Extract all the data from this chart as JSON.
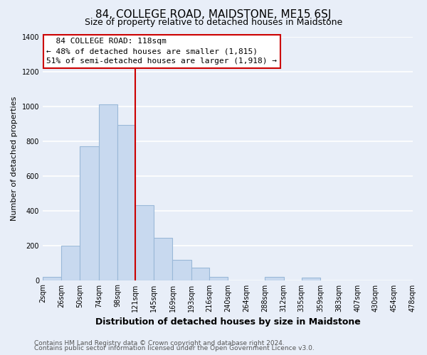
{
  "title": "84, COLLEGE ROAD, MAIDSTONE, ME15 6SJ",
  "subtitle": "Size of property relative to detached houses in Maidstone",
  "xlabel": "Distribution of detached houses by size in Maidstone",
  "ylabel": "Number of detached properties",
  "bar_left_edges": [
    2,
    26,
    50,
    74,
    98,
    121,
    145,
    169,
    193,
    216,
    240,
    264,
    288,
    312,
    335,
    359,
    383,
    407,
    430,
    454
  ],
  "bar_heights": [
    20,
    200,
    770,
    1010,
    890,
    430,
    245,
    115,
    70,
    20,
    0,
    0,
    20,
    0,
    15,
    0,
    0,
    0,
    0,
    0
  ],
  "bar_widths": [
    24,
    24,
    24,
    24,
    23,
    24,
    24,
    24,
    23,
    24,
    24,
    24,
    24,
    23,
    24,
    24,
    24,
    23,
    24,
    24
  ],
  "bar_color": "#c8d9ef",
  "bar_edgecolor": "#9ab8d8",
  "vline_x": 121,
  "vline_color": "#cc0000",
  "annotation_title": "84 COLLEGE ROAD: 118sqm",
  "annotation_line1": "← 48% of detached houses are smaller (1,815)",
  "annotation_line2": "51% of semi-detached houses are larger (1,918) →",
  "annotation_box_edgecolor": "#cc0000",
  "annotation_box_facecolor": "#ffffff",
  "xtick_labels": [
    "2sqm",
    "26sqm",
    "50sqm",
    "74sqm",
    "98sqm",
    "121sqm",
    "145sqm",
    "169sqm",
    "193sqm",
    "216sqm",
    "240sqm",
    "264sqm",
    "288sqm",
    "312sqm",
    "335sqm",
    "359sqm",
    "383sqm",
    "407sqm",
    "430sqm",
    "454sqm",
    "478sqm"
  ],
  "xtick_positions": [
    2,
    26,
    50,
    74,
    98,
    121,
    145,
    169,
    193,
    216,
    240,
    264,
    288,
    312,
    335,
    359,
    383,
    407,
    430,
    454,
    478
  ],
  "ylim": [
    0,
    1400
  ],
  "xlim": [
    2,
    478
  ],
  "yticks": [
    0,
    200,
    400,
    600,
    800,
    1000,
    1200,
    1400
  ],
  "footer_line1": "Contains HM Land Registry data © Crown copyright and database right 2024.",
  "footer_line2": "Contains public sector information licensed under the Open Government Licence v3.0.",
  "bg_color": "#e8eef8",
  "grid_color": "#ffffff",
  "title_fontsize": 11,
  "subtitle_fontsize": 9,
  "xlabel_fontsize": 9,
  "ylabel_fontsize": 8,
  "tick_fontsize": 7,
  "footer_fontsize": 6.5,
  "annotation_fontsize": 8
}
